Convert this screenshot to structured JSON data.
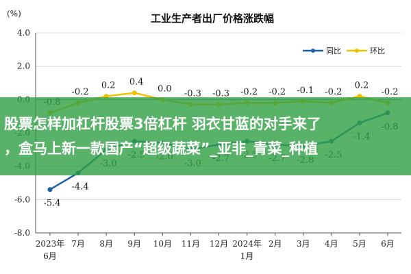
{
  "overlay": {
    "line1": "股票怎样加杠杆股票3倍杠杆 羽衣甘蓝的对手来了",
    "line2": "，盒马上新一款国产“超级蔬菜”_亚非_青菜_种植"
  },
  "chart_data": {
    "type": "line",
    "title": "工业生产者出厂价格涨跌幅",
    "unit_label": "(%)",
    "categories": [
      "2023年6月",
      "7月",
      "8月",
      "9月",
      "10月",
      "11月",
      "12月",
      "2024年1月",
      "2月",
      "3月",
      "4月",
      "5月",
      "6月"
    ],
    "category_lines": [
      [
        "2023年",
        "6月"
      ],
      [
        "7月"
      ],
      [
        "8月"
      ],
      [
        "9月"
      ],
      [
        "10月"
      ],
      [
        "11月"
      ],
      [
        "12月"
      ],
      [
        "2024年",
        "1月"
      ],
      [
        "2月"
      ],
      [
        "3月"
      ],
      [
        "4月"
      ],
      [
        "5月"
      ],
      [
        "6月"
      ]
    ],
    "ylim": [
      -8.0,
      4.0
    ],
    "yticks": [
      "4.0",
      "2.0",
      "0.0",
      "-2.0",
      "-4.0",
      "-6.0",
      "-8.0"
    ],
    "grid": true,
    "legend_position": "top-right",
    "series": [
      {
        "name": "同比",
        "color": "#1f5fa6",
        "values": [
          -5.4,
          -4.4,
          -3.0,
          -2.5,
          -2.6,
          -3.0,
          -2.7,
          -2.5,
          -2.7,
          -2.8,
          -2.5,
          -1.4,
          -0.8
        ],
        "labels": [
          "-5.4",
          "-4.4",
          "-3.0",
          "-2.5",
          "-2.6",
          "-3.0",
          "-2.7",
          "-2.5",
          "-2.7",
          "-2.8",
          "-2.5",
          "-1.4",
          "-0.8"
        ]
      },
      {
        "name": "环比",
        "color": "#f2c200",
        "values": [
          -0.8,
          -0.2,
          0.2,
          0.4,
          0.0,
          -0.3,
          -0.3,
          -0.2,
          -0.2,
          -0.1,
          -0.2,
          0.2,
          -0.2
        ],
        "labels": [
          "-0.8",
          "-0.2",
          "0.2",
          "0.4",
          "0.0",
          "-0.3",
          "-0.3",
          "-0.2",
          "-0.2",
          "-0.1",
          "-0.2",
          "0.2",
          "-0.2"
        ]
      }
    ]
  }
}
